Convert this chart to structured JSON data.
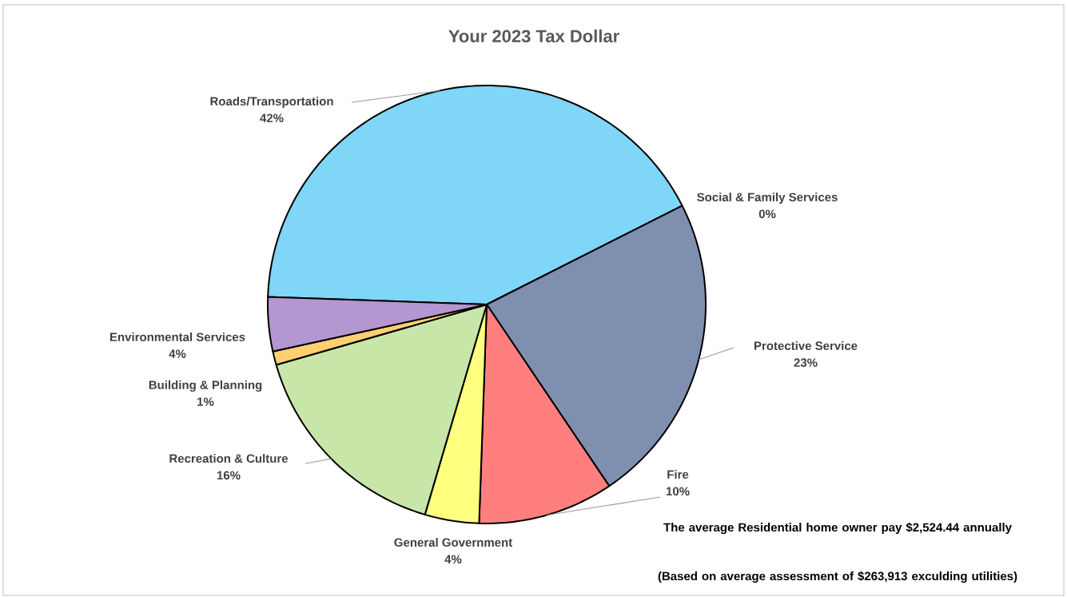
{
  "chart_data": {
    "type": "pie",
    "title": "Your 2023 Tax Dollar",
    "categories": [
      "Roads/Transportation",
      "Social & Family Services",
      "Protective Service",
      "Fire",
      "General Government",
      "Recreation & Culture",
      "Building & Planning",
      "Environmental Services"
    ],
    "values": [
      42,
      0,
      23,
      10,
      4,
      16,
      1,
      4
    ],
    "value_labels": [
      "42%",
      "0%",
      "23%",
      "10%",
      "4%",
      "16%",
      "1%",
      "4%"
    ],
    "colors": [
      "#7fd6f6",
      "#ffffff",
      "#7f8fb0",
      "#ff7f7f",
      "#ffff80",
      "#c8e6a8",
      "#ffd070",
      "#b496d0"
    ],
    "annotations": [
      "The average Residential home owner pay $2,524.44 annually",
      "(Based on average assessment of $263,913 exculding utilities)"
    ]
  }
}
